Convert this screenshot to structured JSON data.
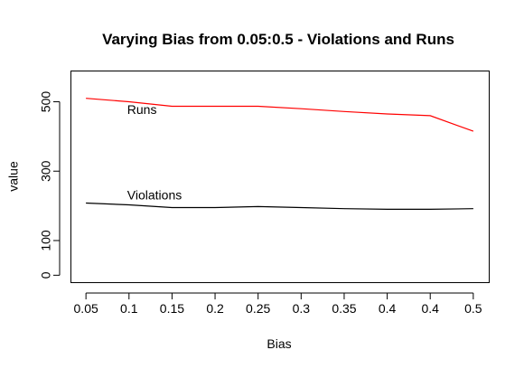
{
  "chart_data": {
    "type": "line",
    "title": "Varying Bias from 0.05:0.5 - Violations and Runs",
    "xlabel": "Bias",
    "ylabel": "value",
    "x": [
      0.05,
      0.1,
      0.15,
      0.2,
      0.25,
      0.3,
      0.35,
      0.4,
      0.4,
      0.5
    ],
    "x_tick_labels": [
      "0.05",
      "0.1",
      "0.15",
      "0.2",
      "0.25",
      "0.3",
      "0.35",
      "0.4",
      "0.4",
      "0.5"
    ],
    "y_ticks": [
      0,
      100,
      300,
      500
    ],
    "ylim": [
      -20,
      590
    ],
    "grid": false,
    "series": [
      {
        "name": "Runs",
        "color": "#ff0000",
        "values": [
          510,
          500,
          487,
          487,
          487,
          480,
          472,
          465,
          460,
          415
        ]
      },
      {
        "name": "Violations",
        "color": "#000000",
        "values": [
          208,
          203,
          195,
          195,
          198,
          195,
          192,
          190,
          190,
          192
        ]
      }
    ],
    "annotations": [
      {
        "text": "Runs",
        "series": "Runs",
        "x": 0.1,
        "y": 465
      },
      {
        "text": "Violations",
        "series": "Violations",
        "x": 0.1,
        "y": 218
      }
    ]
  }
}
